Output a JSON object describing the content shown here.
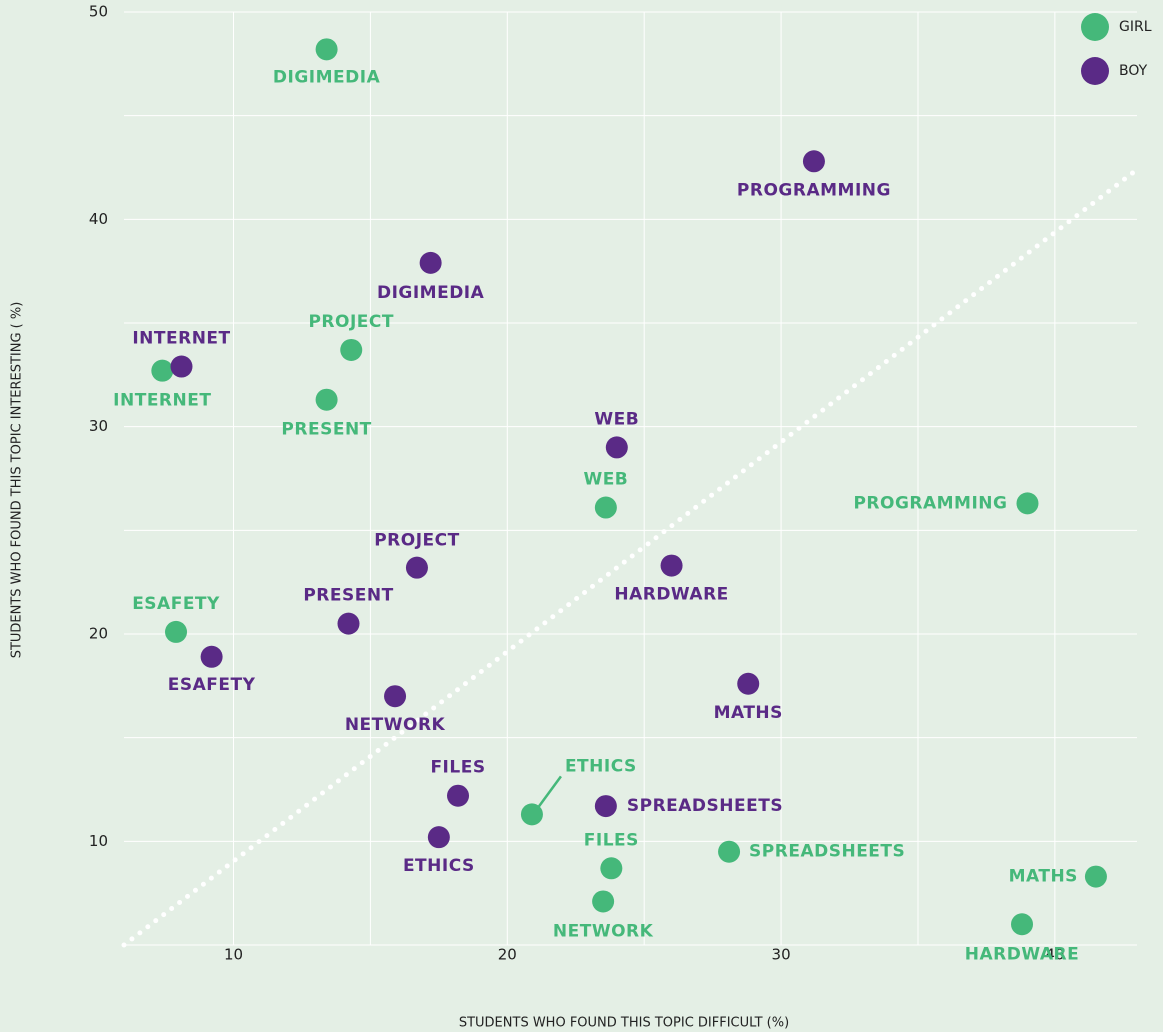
{
  "chart_data": {
    "type": "scatter",
    "x_label": "STUDENTS WHO FOUND THIS TOPIC DIFFICULT (%)",
    "y_label": "STUDENTS WHO FOUND THIS TOPIC INTERESTING ( %)",
    "xlim": [
      6,
      43
    ],
    "ylim": [
      5,
      50
    ],
    "xticks": [
      10,
      20,
      30,
      40
    ],
    "yticks": [
      10,
      20,
      30,
      40,
      50
    ],
    "xgrid": [
      10,
      15,
      20,
      25,
      30,
      35,
      40
    ],
    "ygrid": [
      5,
      10,
      15,
      20,
      25,
      30,
      35,
      40,
      45,
      50
    ],
    "grid": true,
    "legend": "top-right",
    "reference_line": {
      "x": [
        6,
        43
      ],
      "y": [
        5,
        42.4
      ],
      "color": "#ffffff"
    },
    "series": [
      {
        "name": "GIRL",
        "color": "#45b87a",
        "labels": [
          "DIGIMEDIA",
          "INTERNET",
          "PROJECT",
          "PRESENT",
          "WEB",
          "PROGRAMMING",
          "ESAFETY",
          "ETHICS",
          "FILES",
          "NETWORK",
          "SPREADSHEETS",
          "MATHS",
          "HARDWARE"
        ],
        "x": [
          13.4,
          7.4,
          14.3,
          13.4,
          23.6,
          39.0,
          7.9,
          20.9,
          23.8,
          23.5,
          28.1,
          41.5,
          38.8
        ],
        "values": [
          48.2,
          32.7,
          33.7,
          31.3,
          26.1,
          26.3,
          20.1,
          11.3,
          8.7,
          7.1,
          9.5,
          8.3,
          6.0
        ]
      },
      {
        "name": "BOY",
        "color": "#5a2a86",
        "labels": [
          "PROGRAMMING",
          "DIGIMEDIA",
          "INTERNET",
          "WEB",
          "HARDWARE",
          "PROJECT",
          "PRESENT",
          "ESAFETY",
          "NETWORK",
          "MATHS",
          "FILES",
          "SPREADSHEETS",
          "ETHICS"
        ],
        "x": [
          31.2,
          17.2,
          8.1,
          24.0,
          26.0,
          16.7,
          14.2,
          9.2,
          15.9,
          28.8,
          18.2,
          23.6,
          17.5
        ],
        "values": [
          42.8,
          37.9,
          32.9,
          29.0,
          23.3,
          23.2,
          20.5,
          18.9,
          17.0,
          17.6,
          12.2,
          11.7,
          10.2
        ]
      }
    ]
  }
}
